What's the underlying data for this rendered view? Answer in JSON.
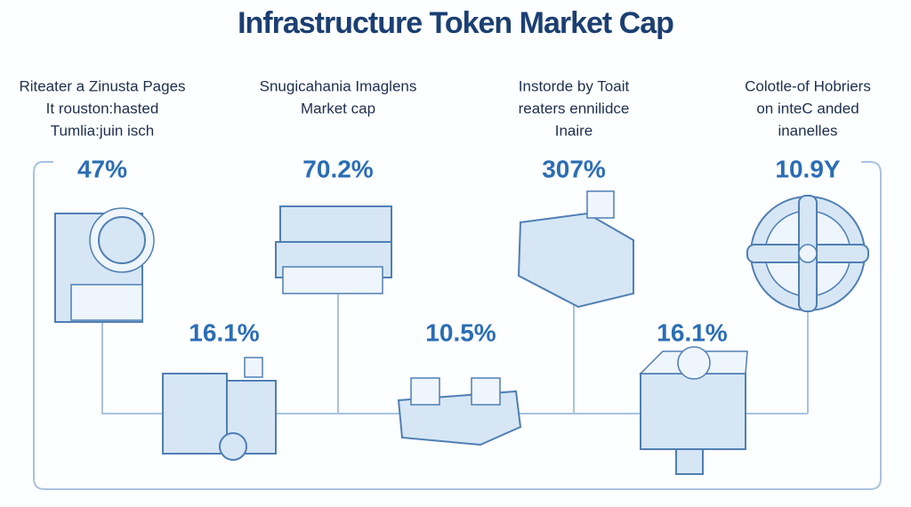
{
  "header": {
    "title": "Infrastructure Token Market Cap"
  },
  "top_items": [
    {
      "label_lines": [
        "Riteater a Zinusta Pages",
        "It rouston:hasted",
        "Tumlia:juin isch"
      ],
      "value": "47%"
    },
    {
      "label_lines": [
        "Snugicahania Imaglens",
        "Market cap"
      ],
      "value": "70.2%"
    },
    {
      "label_lines": [
        "Instorde by Toait",
        "reaters ennilidce",
        "Inaire"
      ],
      "value": "307%"
    },
    {
      "label_lines": [
        "Colotle-of Hobriers",
        "on inteC anded",
        "inanelles"
      ],
      "value": "10.9Y"
    }
  ],
  "bottom_items": [
    {
      "value": "16.1%"
    },
    {
      "value": "10.5%"
    },
    {
      "value": "16.1%"
    }
  ]
}
